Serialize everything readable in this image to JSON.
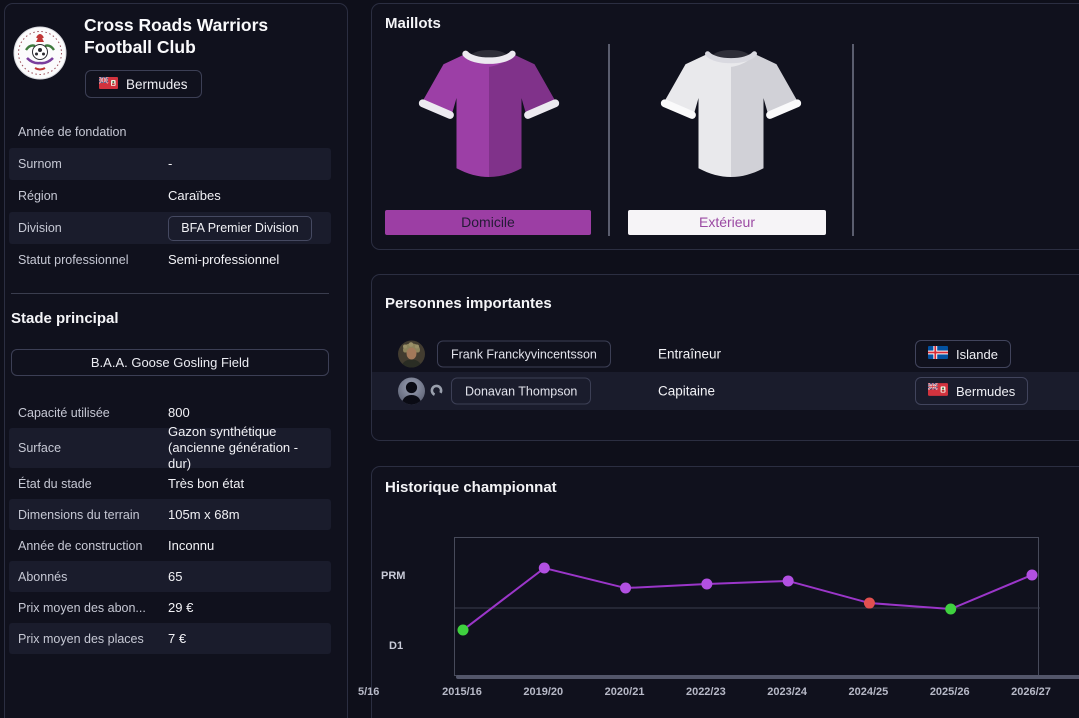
{
  "club": {
    "name_line1": "Cross Roads Warriors",
    "name_line2": "Football Club",
    "nation": "Bermudes",
    "info_rows": [
      {
        "label": "Année de fondation",
        "value": ""
      },
      {
        "label": "Surnom",
        "value": "-"
      },
      {
        "label": "Région",
        "value": "Caraïbes"
      },
      {
        "label": "Division",
        "value": "BFA Premier Division"
      },
      {
        "label": "Statut professionnel",
        "value": "Semi-professionnel"
      }
    ]
  },
  "stadium": {
    "heading": "Stade principal",
    "name": "B.A.A. Goose Gosling Field",
    "rows": [
      {
        "label": "Capacité utilisée",
        "value": "800"
      },
      {
        "label": "Surface",
        "value": "Gazon synthétique\n(ancienne génération - dur)"
      },
      {
        "label": "État du stade",
        "value": "Très bon état"
      },
      {
        "label": "Dimensions du terrain",
        "value": "105m x 68m"
      },
      {
        "label": "Année de construction",
        "value": "Inconnu"
      },
      {
        "label": "Abonnés",
        "value": "65"
      },
      {
        "label": "Prix moyen des abon...",
        "value": "29 €"
      },
      {
        "label": "Prix moyen des places",
        "value": "7 €"
      }
    ]
  },
  "kits": {
    "title": "Maillots",
    "items": [
      {
        "label": "Domicile",
        "bar_bg": "#9c3ea4",
        "bar_text": "#241b36",
        "jersey_color": "#9c3fa6"
      },
      {
        "label": "Extérieur",
        "bar_bg": "#f6f4f7",
        "bar_text": "#9b4aa3",
        "jersey_color": "#e9e9ec"
      }
    ]
  },
  "people": {
    "title": "Personnes importantes",
    "rows": [
      {
        "name": "Frank Franckyvincentsson",
        "role": "Entraîneur",
        "nation": "Islande",
        "captain": false
      },
      {
        "name": "Donavan Thompson",
        "role": "Capitaine",
        "nation": "Bermudes",
        "captain": true
      }
    ]
  },
  "chart_data": {
    "type": "line",
    "title": "Historique championnat",
    "band_labels": [
      "PRM",
      "D1"
    ],
    "x_labels": [
      "2015/16",
      "2019/20",
      "2020/21",
      "2022/23",
      "2023/24",
      "2024/25",
      "2025/26",
      "2026/27"
    ],
    "clipped_left_label": "5/16",
    "points": [
      {
        "season": "2015/16",
        "division": "D1",
        "y_frac": 0.662,
        "color": "#3fd13f"
      },
      {
        "season": "2019/20",
        "division": "PRM",
        "y_frac": 0.216,
        "color": "#b250e2"
      },
      {
        "season": "2020/21",
        "division": "PRM",
        "y_frac": 0.36,
        "color": "#b250e2"
      },
      {
        "season": "2022/23",
        "division": "PRM",
        "y_frac": 0.331,
        "color": "#b250e2"
      },
      {
        "season": "2023/24",
        "division": "PRM",
        "y_frac": 0.309,
        "color": "#b250e2"
      },
      {
        "season": "2024/25",
        "division": "PRM",
        "y_frac": 0.468,
        "color": "#e25050"
      },
      {
        "season": "2025/26",
        "division": "D1",
        "y_frac": 0.511,
        "color": "#3fd13f"
      },
      {
        "season": "2026/27",
        "division": "PRM",
        "y_frac": 0.266,
        "color": "#b250e2"
      }
    ],
    "line_color": "#9b36c9",
    "divider_frac": 0.504,
    "legend": "none",
    "grid": "division-divider-only"
  },
  "colors": {
    "background": "#0e0f1a",
    "stripe": "#1a1c2c",
    "panel_border": "#2b2e41",
    "accent_purple": "#9c3ea4",
    "text_primary": "#f4f4f7",
    "text_secondary": "#c6c8d4",
    "chart_promoted_green": "#3fd13f",
    "chart_relegated_red": "#e25050"
  },
  "icons": {
    "club_crest": "circular-club-crest",
    "bermuda_flag": "flag-bermuda",
    "iceland_flag": "flag-iceland",
    "captain_armband": "captain-armband",
    "coach_avatar": "portrait-photo",
    "player_avatar": "person-silhouette"
  }
}
